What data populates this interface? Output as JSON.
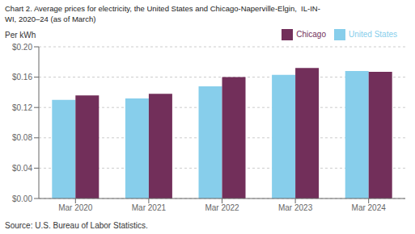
{
  "chart_data": {
    "type": "bar",
    "title": "Chart 2. Average prices for electricity, the United States and Chicago-Naperville-Elgin,  IL-IN-\nWI, 2020–24 (as of March)",
    "ylabel": "Per kWh",
    "source": "Source: U.S. Bureau of Labor Statistics.",
    "categories": [
      "Mar 2020",
      "Mar 2021",
      "Mar 2022",
      "Mar 2023",
      "Mar 2024"
    ],
    "series": [
      {
        "name": "United States",
        "color": "#87CEEB",
        "values": [
          0.13,
          0.132,
          0.148,
          0.163,
          0.168
        ]
      },
      {
        "name": "Chicago",
        "color": "#722F5A",
        "values": [
          0.136,
          0.138,
          0.16,
          0.172,
          0.167
        ]
      }
    ],
    "ylim": [
      0.0,
      0.2
    ],
    "yticks": [
      {
        "value": 0.0,
        "label": "$0.00"
      },
      {
        "value": 0.04,
        "label": "$0.04"
      },
      {
        "value": 0.08,
        "label": "$0.08"
      },
      {
        "value": 0.12,
        "label": "$0.12"
      },
      {
        "value": 0.16,
        "label": "$0.16"
      },
      {
        "value": 0.2,
        "label": "$0.20"
      }
    ],
    "grid": true,
    "legend": "upper right"
  }
}
